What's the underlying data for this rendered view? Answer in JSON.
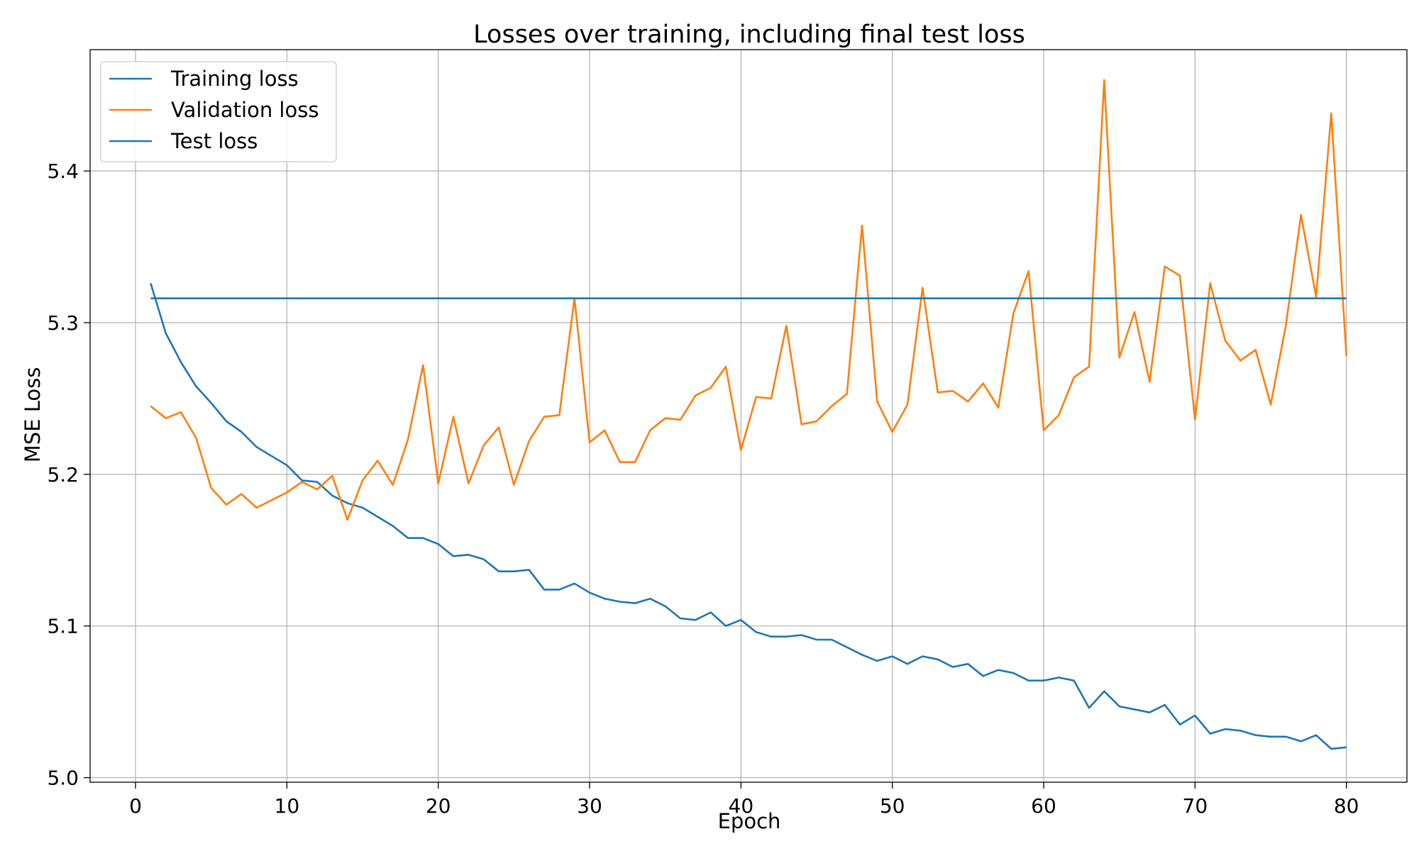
{
  "chart_data": {
    "type": "line",
    "title": "Losses over training, including final test loss",
    "xlabel": "Epoch",
    "ylabel": "MSE Loss",
    "xlim": [
      -3,
      84
    ],
    "ylim": [
      4.997,
      5.48
    ],
    "xticks": [
      0,
      10,
      20,
      30,
      40,
      50,
      60,
      70,
      80
    ],
    "yticks": [
      5.0,
      5.1,
      5.2,
      5.3,
      5.4
    ],
    "xtick_labels": [
      "0",
      "10",
      "20",
      "30",
      "40",
      "50",
      "60",
      "70",
      "80"
    ],
    "ytick_labels": [
      "5.0",
      "5.1",
      "5.2",
      "5.3",
      "5.4"
    ],
    "grid": true,
    "legend_position": "top-left",
    "series": [
      {
        "name": "Training loss",
        "color": "#1f77b4",
        "x": [
          1,
          2,
          3,
          4,
          5,
          6,
          7,
          8,
          9,
          10,
          11,
          12,
          13,
          14,
          15,
          16,
          17,
          18,
          19,
          20,
          21,
          22,
          23,
          24,
          25,
          26,
          27,
          28,
          29,
          30,
          31,
          32,
          33,
          34,
          35,
          36,
          37,
          38,
          39,
          40,
          41,
          42,
          43,
          44,
          45,
          46,
          47,
          48,
          49,
          50,
          51,
          52,
          53,
          54,
          55,
          56,
          57,
          58,
          59,
          60,
          61,
          62,
          63,
          64,
          65,
          66,
          67,
          68,
          69,
          70,
          71,
          72,
          73,
          74,
          75,
          76,
          77,
          78,
          79,
          80
        ],
        "y": [
          5.326,
          5.293,
          5.274,
          5.258,
          5.247,
          5.235,
          5.228,
          5.218,
          5.212,
          5.206,
          5.196,
          5.195,
          5.186,
          5.181,
          5.178,
          5.172,
          5.166,
          5.158,
          5.158,
          5.154,
          5.146,
          5.147,
          5.144,
          5.136,
          5.136,
          5.137,
          5.124,
          5.124,
          5.128,
          5.122,
          5.118,
          5.116,
          5.115,
          5.118,
          5.113,
          5.105,
          5.104,
          5.109,
          5.1,
          5.104,
          5.096,
          5.093,
          5.093,
          5.094,
          5.091,
          5.091,
          5.086,
          5.081,
          5.077,
          5.08,
          5.075,
          5.08,
          5.078,
          5.073,
          5.075,
          5.067,
          5.071,
          5.069,
          5.064,
          5.064,
          5.066,
          5.064,
          5.046,
          5.057,
          5.047,
          5.045,
          5.043,
          5.048,
          5.035,
          5.041,
          5.029,
          5.032,
          5.031,
          5.028,
          5.027,
          5.027,
          5.024,
          5.028,
          5.019,
          5.02
        ]
      },
      {
        "name": "Validation loss",
        "color": "#ff7f0e",
        "x": [
          1,
          2,
          3,
          4,
          5,
          6,
          7,
          8,
          9,
          10,
          11,
          12,
          13,
          14,
          15,
          16,
          17,
          18,
          19,
          20,
          21,
          22,
          23,
          24,
          25,
          26,
          27,
          28,
          29,
          30,
          31,
          32,
          33,
          34,
          35,
          36,
          37,
          38,
          39,
          40,
          41,
          42,
          43,
          44,
          45,
          46,
          47,
          48,
          49,
          50,
          51,
          52,
          53,
          54,
          55,
          56,
          57,
          58,
          59,
          60,
          61,
          62,
          63,
          64,
          65,
          66,
          67,
          68,
          69,
          70,
          71,
          72,
          73,
          74,
          75,
          76,
          77,
          78,
          79,
          80
        ],
        "y": [
          5.245,
          5.237,
          5.241,
          5.224,
          5.191,
          5.18,
          5.187,
          5.178,
          5.183,
          5.188,
          5.195,
          5.19,
          5.199,
          5.17,
          5.196,
          5.209,
          5.193,
          5.223,
          5.272,
          5.194,
          5.238,
          5.194,
          5.219,
          5.231,
          5.193,
          5.222,
          5.238,
          5.239,
          5.316,
          5.221,
          5.229,
          5.208,
          5.208,
          5.229,
          5.237,
          5.236,
          5.252,
          5.257,
          5.271,
          5.216,
          5.251,
          5.25,
          5.298,
          5.233,
          5.235,
          5.245,
          5.253,
          5.364,
          5.248,
          5.228,
          5.246,
          5.323,
          5.254,
          5.255,
          5.248,
          5.26,
          5.244,
          5.306,
          5.334,
          5.229,
          5.239,
          5.264,
          5.271,
          5.46,
          5.277,
          5.307,
          5.261,
          5.337,
          5.331,
          5.236,
          5.326,
          5.288,
          5.275,
          5.282,
          5.246,
          5.298,
          5.371,
          5.317,
          5.438,
          5.278
        ]
      },
      {
        "name": "Test loss",
        "color": "#1f77b4",
        "x": [
          1,
          80
        ],
        "y": [
          5.316,
          5.316
        ]
      }
    ]
  }
}
